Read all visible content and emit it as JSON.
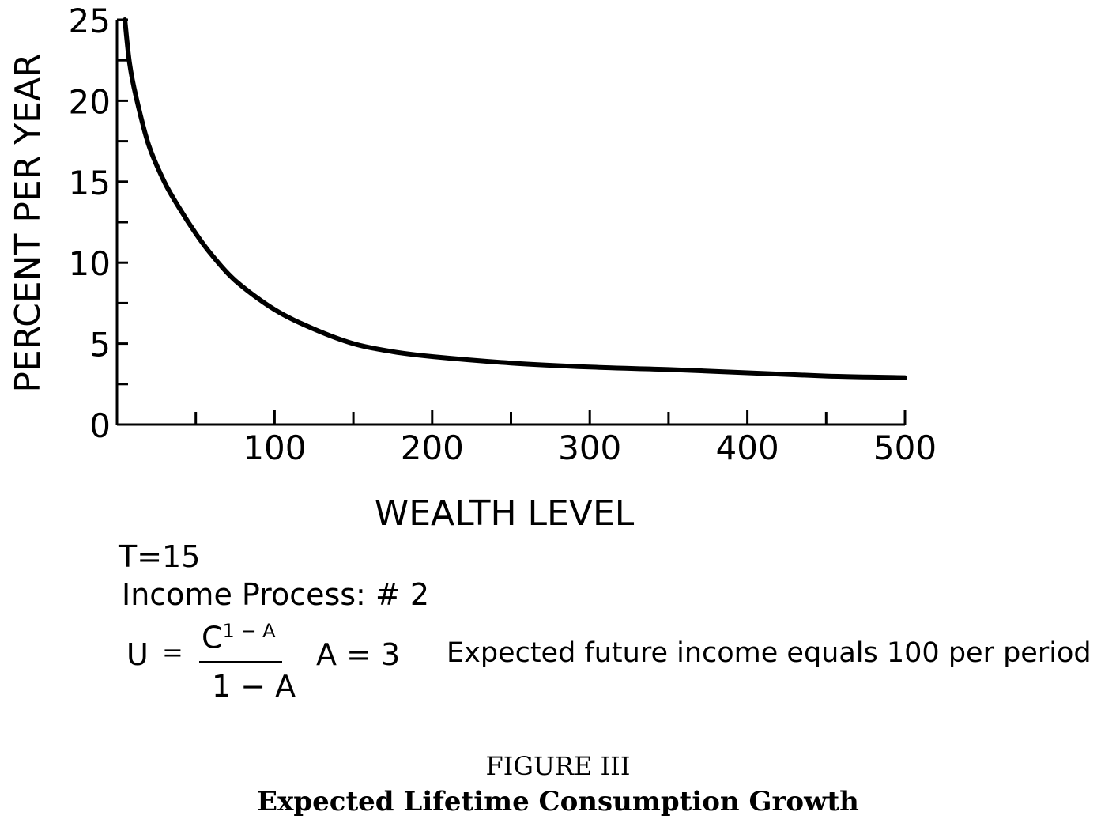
{
  "chart_data": {
    "type": "line",
    "title": "Expected Lifetime Consumption Growth",
    "figure_label": "FIGURE III",
    "xlabel": "WEALTH LEVEL",
    "ylabel": "PERCENT PER YEAR",
    "xlim": [
      0,
      500
    ],
    "ylim": [
      0,
      25
    ],
    "x_ticks": [
      100,
      200,
      300,
      400,
      500
    ],
    "x_minor_ticks": [
      50,
      150,
      250,
      350,
      450
    ],
    "y_ticks": [
      0,
      5,
      10,
      15,
      20,
      25
    ],
    "y_minor_ticks": [
      2.5,
      7.5,
      12.5,
      17.5,
      22.5
    ],
    "grid": false,
    "series": [
      {
        "x": [
          5,
          8,
          12,
          20,
          30,
          40,
          50,
          60,
          75,
          100,
          125,
          150,
          175,
          200,
          250,
          300,
          350,
          400,
          450,
          500
        ],
        "y": [
          25,
          22.3,
          20.3,
          17.3,
          15.0,
          13.3,
          11.8,
          10.5,
          8.9,
          7.1,
          5.9,
          5.0,
          4.5,
          4.2,
          3.8,
          3.55,
          3.4,
          3.2,
          3.0,
          2.9
        ]
      }
    ],
    "annotations": {
      "t_line": "T=15",
      "income_line": "Income Process: # 2",
      "u_label": "U",
      "eq_sign": "=",
      "numerator_base": "C",
      "numerator_exp": "1 − A",
      "denominator": "1 − A",
      "a_value": "A = 3",
      "income_note": "Expected future income equals 100 per period"
    }
  }
}
